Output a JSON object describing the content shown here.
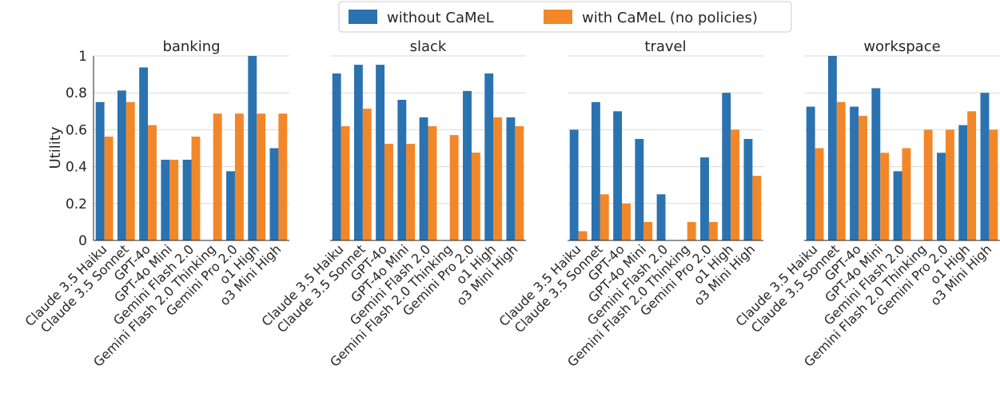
{
  "legend": {
    "series_a": "without CaMeL",
    "series_b": "with CaMeL (no policies)"
  },
  "colors": {
    "series_a": "#2b72b0",
    "series_b": "#f28729",
    "grid": "#d9d9d9",
    "axis": "#262626"
  },
  "chart_data": {
    "type": "bar",
    "ylabel": "Utility",
    "ylim": [
      0,
      1
    ],
    "yticks": [
      "0",
      "0.2",
      "0.4",
      "0.6",
      "0.8",
      "1"
    ],
    "ytick_values": [
      0,
      0.2,
      0.4,
      0.6,
      0.8,
      1
    ],
    "grid": true,
    "legend_position": "top-center",
    "categories": [
      "Claude 3.5 Haiku",
      "Claude 3.5 Sonnet",
      "GPT-4o",
      "GPT-4o Mini",
      "Gemini Flash 2.0",
      "Gemini Flash 2.0 Thinking",
      "Gemini Pro 2.0",
      "o1 High",
      "o3 Mini High"
    ],
    "panels": [
      {
        "title": "banking",
        "series": [
          {
            "name": "without CaMeL",
            "values": [
              0.75,
              0.8125,
              0.9375,
              0.4375,
              0.4375,
              0,
              0.375,
              1.0,
              0.5
            ]
          },
          {
            "name": "with CaMeL (no policies)",
            "values": [
              0.5625,
              0.75,
              0.625,
              0.4375,
              0.5625,
              0.6875,
              0.6875,
              0.6875,
              0.6875
            ]
          }
        ]
      },
      {
        "title": "slack",
        "series": [
          {
            "name": "without CaMeL",
            "values": [
              0.905,
              0.952,
              0.952,
              0.762,
              0.667,
              0,
              0.81,
              0.905,
              0.667
            ]
          },
          {
            "name": "with CaMeL (no policies)",
            "values": [
              0.619,
              0.714,
              0.524,
              0.524,
              0.619,
              0.571,
              0.476,
              0.667,
              0.619
            ]
          }
        ]
      },
      {
        "title": "travel",
        "series": [
          {
            "name": "without CaMeL",
            "values": [
              0.6,
              0.75,
              0.7,
              0.55,
              0.25,
              0,
              0.45,
              0.8,
              0.55
            ]
          },
          {
            "name": "with CaMeL (no policies)",
            "values": [
              0.05,
              0.25,
              0.2,
              0.1,
              0,
              0.1,
              0.1,
              0.6,
              0.35
            ]
          }
        ]
      },
      {
        "title": "workspace",
        "series": [
          {
            "name": "without CaMeL",
            "values": [
              0.725,
              1.0,
              0.725,
              0.825,
              0.375,
              0,
              0.475,
              0.625,
              0.8
            ]
          },
          {
            "name": "with CaMeL (no policies)",
            "values": [
              0.5,
              0.75,
              0.675,
              0.475,
              0.5,
              0.6,
              0.6,
              0.7,
              0.6
            ]
          }
        ]
      }
    ]
  }
}
